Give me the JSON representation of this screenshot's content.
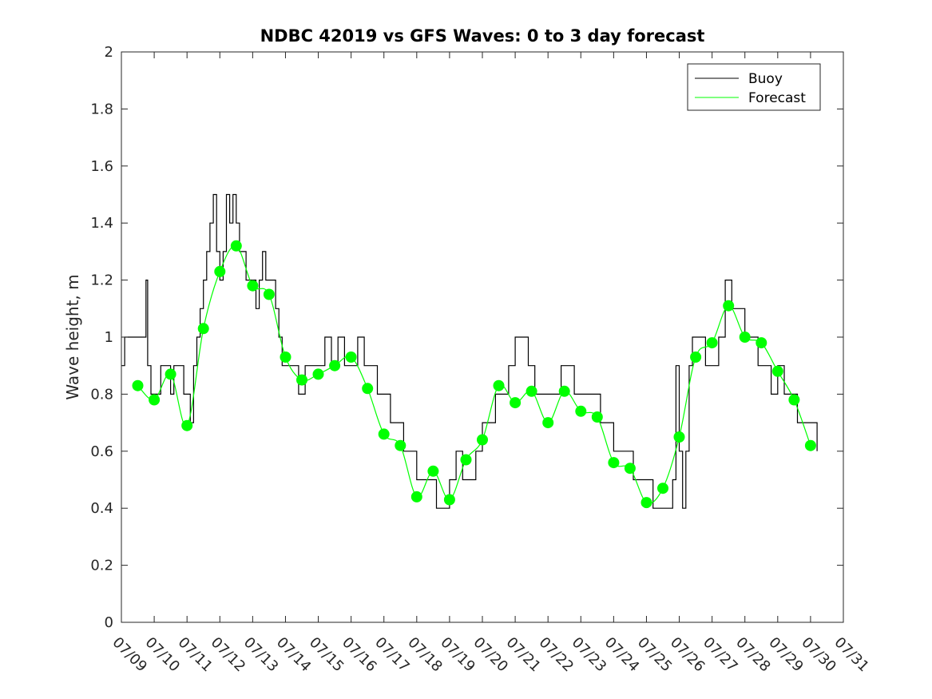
{
  "chart_data": {
    "type": "line",
    "title": "NDBC 42019 vs GFS Waves: 0 to 3 day forecast",
    "xlabel": "",
    "ylabel": "Wave height, m",
    "xlim": [
      9,
      31
    ],
    "ylim": [
      0,
      2
    ],
    "x_tick_labels": [
      "07/09",
      "07/10",
      "07/11",
      "07/12",
      "07/13",
      "07/14",
      "07/15",
      "07/16",
      "07/17",
      "07/18",
      "07/19",
      "07/20",
      "07/21",
      "07/22",
      "07/23",
      "07/24",
      "07/25",
      "07/26",
      "07/27",
      "07/28",
      "07/29",
      "07/30",
      "07/31"
    ],
    "y_tick_labels": [
      "0",
      "0.2",
      "0.4",
      "0.6",
      "0.8",
      "1",
      "1.2",
      "1.4",
      "1.6",
      "1.8",
      "2"
    ],
    "grid": false,
    "legend_position": "top-right",
    "colors": {
      "buoy": "#000000",
      "forecast": "#00ff00"
    },
    "legend": [
      {
        "label": "Buoy",
        "color": "#000000",
        "marker": "line"
      },
      {
        "label": "Forecast",
        "color": "#00ff00",
        "marker": "line"
      }
    ],
    "series": [
      {
        "name": "Buoy",
        "x": [
          9.0,
          9.1,
          9.3,
          9.5,
          9.7,
          9.75,
          9.8,
          9.9,
          10.0,
          10.2,
          10.4,
          10.5,
          10.6,
          10.8,
          10.9,
          11.0,
          11.1,
          11.2,
          11.3,
          11.4,
          11.5,
          11.6,
          11.7,
          11.8,
          11.9,
          12.0,
          12.1,
          12.2,
          12.3,
          12.4,
          12.5,
          12.6,
          12.7,
          12.8,
          12.9,
          13.0,
          13.1,
          13.2,
          13.3,
          13.4,
          13.5,
          13.6,
          13.7,
          13.8,
          13.9,
          14.0,
          14.2,
          14.4,
          14.6,
          14.8,
          15.0,
          15.2,
          15.4,
          15.6,
          15.8,
          16.0,
          16.2,
          16.4,
          16.6,
          16.8,
          17.0,
          17.2,
          17.4,
          17.6,
          17.8,
          18.0,
          18.2,
          18.4,
          18.6,
          18.8,
          19.0,
          19.2,
          19.4,
          19.6,
          19.8,
          20.0,
          20.2,
          20.4,
          20.6,
          20.8,
          21.0,
          21.2,
          21.4,
          21.6,
          21.8,
          22.0,
          22.2,
          22.4,
          22.6,
          22.8,
          23.0,
          23.2,
          23.4,
          23.6,
          23.8,
          24.0,
          24.2,
          24.4,
          24.6,
          24.8,
          25.0,
          25.2,
          25.4,
          25.6,
          25.8,
          25.9,
          26.0,
          26.1,
          26.2,
          26.3,
          26.4,
          26.6,
          26.8,
          27.0,
          27.2,
          27.4,
          27.6,
          27.8,
          28.0,
          28.2,
          28.4,
          28.6,
          28.8,
          29.0,
          29.2,
          29.4,
          29.6,
          29.8,
          30.0,
          30.2
        ],
        "y": [
          0.9,
          1.0,
          1.0,
          1.0,
          1.0,
          1.2,
          0.9,
          0.8,
          0.8,
          0.9,
          0.9,
          0.8,
          0.9,
          0.9,
          0.8,
          0.8,
          0.7,
          0.9,
          1.0,
          1.1,
          1.2,
          1.3,
          1.4,
          1.5,
          1.3,
          1.2,
          1.3,
          1.5,
          1.4,
          1.5,
          1.4,
          1.3,
          1.3,
          1.2,
          1.2,
          1.2,
          1.1,
          1.2,
          1.3,
          1.2,
          1.2,
          1.2,
          1.1,
          1.0,
          0.9,
          0.9,
          0.9,
          0.8,
          0.9,
          0.9,
          0.9,
          1.0,
          0.9,
          1.0,
          0.9,
          0.9,
          1.0,
          0.9,
          0.9,
          0.8,
          0.8,
          0.7,
          0.7,
          0.6,
          0.6,
          0.5,
          0.5,
          0.5,
          0.4,
          0.4,
          0.5,
          0.6,
          0.5,
          0.5,
          0.6,
          0.7,
          0.7,
          0.8,
          0.8,
          0.9,
          1.0,
          1.0,
          0.9,
          0.8,
          0.8,
          0.8,
          0.8,
          0.9,
          0.9,
          0.8,
          0.8,
          0.8,
          0.8,
          0.7,
          0.7,
          0.6,
          0.6,
          0.6,
          0.5,
          0.5,
          0.5,
          0.4,
          0.4,
          0.4,
          0.5,
          0.9,
          0.6,
          0.4,
          0.6,
          0.9,
          1.0,
          1.0,
          0.9,
          0.9,
          1.0,
          1.2,
          1.1,
          1.1,
          1.0,
          1.0,
          0.9,
          0.9,
          0.8,
          0.9,
          0.8,
          0.8,
          0.7,
          0.7,
          0.7,
          0.6
        ]
      },
      {
        "name": "Forecast",
        "x": [
          9.5,
          10.0,
          10.5,
          11.0,
          11.5,
          12.0,
          12.5,
          13.0,
          13.5,
          14.0,
          14.5,
          15.0,
          15.5,
          16.0,
          16.5,
          17.0,
          17.5,
          18.0,
          18.5,
          19.0,
          19.5,
          20.0,
          20.5,
          21.0,
          21.5,
          22.0,
          22.5,
          23.0,
          23.5,
          24.0,
          24.5,
          25.0,
          25.5,
          26.0,
          26.5,
          27.0,
          27.5,
          28.0,
          28.5,
          29.0,
          29.5,
          30.0
        ],
        "y": [
          0.83,
          0.78,
          0.87,
          0.69,
          1.03,
          1.23,
          1.32,
          1.18,
          1.15,
          0.93,
          0.85,
          0.87,
          0.9,
          0.93,
          0.82,
          0.66,
          0.62,
          0.44,
          0.53,
          0.43,
          0.57,
          0.64,
          0.83,
          0.77,
          0.81,
          0.7,
          0.81,
          0.74,
          0.72,
          0.56,
          0.54,
          0.42,
          0.47,
          0.65,
          0.93,
          0.98,
          1.11,
          1.0,
          0.98,
          0.88,
          0.78,
          0.62
        ]
      }
    ]
  }
}
